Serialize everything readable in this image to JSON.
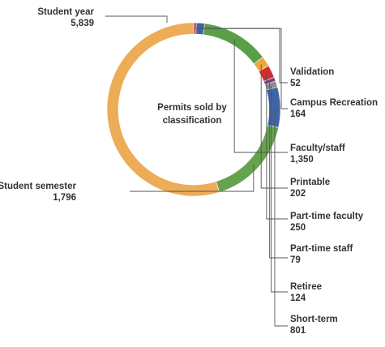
{
  "chart_data": {
    "type": "pie",
    "variant": "donut",
    "center_title": [
      "Permits sold by",
      "classification"
    ],
    "slices": [
      {
        "name": "Validation",
        "value_label": "52",
        "value": 52,
        "color": "#c9364d"
      },
      {
        "name": "Campus Recreation",
        "value_label": "164",
        "value": 164,
        "color": "#3f64a6"
      },
      {
        "name": "Faculty/staff",
        "value_label": "1,350",
        "value": 1350,
        "color": "#5a9e46"
      },
      {
        "name": "Printable",
        "value_label": "202",
        "value": 202,
        "color": "#eba83f"
      },
      {
        "name": "Part-time faculty",
        "value_label": "250",
        "value": 250,
        "color": "#d12c2f"
      },
      {
        "name": "Part-time staff",
        "value_label": "79",
        "value": 79,
        "color": "#7b3f86"
      },
      {
        "name": "Retiree",
        "value_label": "124",
        "value": 124,
        "color": "#8e8e8e"
      },
      {
        "name": "Short-term",
        "value_label": "801",
        "value": 801,
        "color": "#3d66a8"
      },
      {
        "name": "Student semester",
        "value_label": "1,796",
        "value": 1796,
        "color": "#67a24e"
      },
      {
        "name": "Student year",
        "value_label": "5,839",
        "value": 5839,
        "color": "#edac56"
      }
    ]
  }
}
